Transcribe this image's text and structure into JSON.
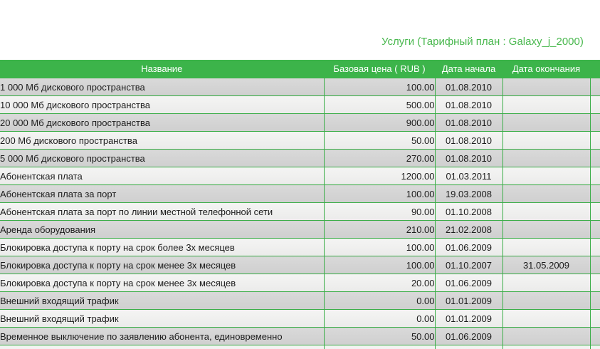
{
  "page": {
    "title": "Услуги (Тарифный план : Galaxy_j_2000)"
  },
  "colors": {
    "accent_green": "#3cb44a",
    "border_green": "#3cae49",
    "title_green": "#49b84e",
    "row_odd_gray": "#d4d4d4",
    "row_even_light": "#f0f0f0",
    "header_text": "#ffffff"
  },
  "table": {
    "columns": [
      {
        "key": "name",
        "label": "Название"
      },
      {
        "key": "base-price",
        "label": "Базовая цена ( RUB )"
      },
      {
        "key": "start-date",
        "label": "Дата начала"
      },
      {
        "key": "end-date",
        "label": "Дата окончания"
      },
      {
        "key": "extra",
        "label": ""
      }
    ],
    "rows": [
      {
        "name": "1 000 Мб дискового пространства",
        "base_price": "100.00",
        "start_date": "01.08.2010",
        "end_date": ""
      },
      {
        "name": "10 000 Мб дискового пространства",
        "base_price": "500.00",
        "start_date": "01.08.2010",
        "end_date": ""
      },
      {
        "name": "20 000 Мб дискового пространства",
        "base_price": "900.00",
        "start_date": "01.08.2010",
        "end_date": ""
      },
      {
        "name": "200 Мб дискового пространства",
        "base_price": "50.00",
        "start_date": "01.08.2010",
        "end_date": ""
      },
      {
        "name": "5 000 Мб дискового пространства",
        "base_price": "270.00",
        "start_date": "01.08.2010",
        "end_date": ""
      },
      {
        "name": "Абонентская плата",
        "base_price": "1200.00",
        "start_date": "01.03.2011",
        "end_date": ""
      },
      {
        "name": "Абонентская плата за порт",
        "base_price": "100.00",
        "start_date": "19.03.2008",
        "end_date": ""
      },
      {
        "name": "Абонентская плата за порт по линии местной телефонной сети",
        "base_price": "90.00",
        "start_date": "01.10.2008",
        "end_date": ""
      },
      {
        "name": "Аренда оборудования",
        "base_price": "210.00",
        "start_date": "21.02.2008",
        "end_date": ""
      },
      {
        "name": "Блокировка доступа к порту на срок более 3х месяцев",
        "base_price": "100.00",
        "start_date": "01.06.2009",
        "end_date": ""
      },
      {
        "name": "Блокировка доступа к порту на срок менее 3х месяцев",
        "base_price": "100.00",
        "start_date": "01.10.2007",
        "end_date": "31.05.2009"
      },
      {
        "name": "Блокировка доступа к порту на срок менее 3х месяцев",
        "base_price": "20.00",
        "start_date": "01.06.2009",
        "end_date": ""
      },
      {
        "name": "Внешний входящий трафик",
        "base_price": "0.00",
        "start_date": "01.01.2009",
        "end_date": ""
      },
      {
        "name": "Внешний входящий трафик",
        "base_price": "0.00",
        "start_date": "01.01.2009",
        "end_date": ""
      },
      {
        "name": "Временное выключение по заявлению абонента, единовременно",
        "base_price": "50.00",
        "start_date": "01.06.2009",
        "end_date": ""
      }
    ]
  }
}
